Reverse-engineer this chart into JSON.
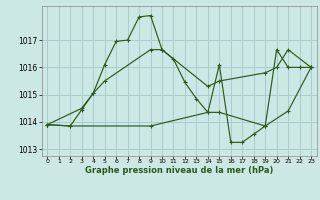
{
  "xlabel": "Graphe pression niveau de la mer (hPa)",
  "bg_color": "#cce8e4",
  "grid_color": "#aacccc",
  "line_color": "#2d5a1b",
  "ylim": [
    1012.75,
    1018.25
  ],
  "xlim": [
    -0.5,
    23.5
  ],
  "yticks": [
    1013,
    1014,
    1015,
    1016,
    1017
  ],
  "xticks": [
    0,
    1,
    2,
    3,
    4,
    5,
    6,
    7,
    8,
    9,
    10,
    11,
    12,
    13,
    14,
    15,
    16,
    17,
    18,
    19,
    20,
    21,
    22,
    23
  ],
  "main_series": [
    [
      0,
      1013.9
    ],
    [
      2,
      1013.85
    ],
    [
      3,
      1014.45
    ],
    [
      4,
      1015.05
    ],
    [
      5,
      1016.1
    ],
    [
      6,
      1016.95
    ],
    [
      7,
      1017.0
    ],
    [
      8,
      1017.85
    ],
    [
      9,
      1017.9
    ],
    [
      10,
      1016.65
    ],
    [
      11,
      1016.3
    ],
    [
      12,
      1015.45
    ],
    [
      13,
      1014.85
    ],
    [
      14,
      1014.35
    ],
    [
      15,
      1016.1
    ],
    [
      16,
      1013.25
    ],
    [
      17,
      1013.25
    ],
    [
      18,
      1013.55
    ],
    [
      19,
      1013.85
    ],
    [
      20,
      1016.65
    ],
    [
      21,
      1016.0
    ],
    [
      22,
      1016.0
    ],
    [
      23,
      1016.0
    ]
  ],
  "upper_series": [
    [
      0,
      1013.9
    ],
    [
      3,
      1014.5
    ],
    [
      4,
      1015.05
    ],
    [
      5,
      1015.5
    ],
    [
      9,
      1016.65
    ],
    [
      10,
      1016.65
    ],
    [
      14,
      1015.3
    ],
    [
      15,
      1015.5
    ],
    [
      19,
      1015.8
    ],
    [
      20,
      1016.0
    ],
    [
      21,
      1016.65
    ],
    [
      23,
      1016.0
    ]
  ],
  "lower_series": [
    [
      0,
      1013.9
    ],
    [
      2,
      1013.85
    ],
    [
      9,
      1013.85
    ],
    [
      14,
      1014.35
    ],
    [
      15,
      1014.35
    ],
    [
      19,
      1013.85
    ],
    [
      21,
      1014.4
    ],
    [
      23,
      1016.0
    ]
  ]
}
